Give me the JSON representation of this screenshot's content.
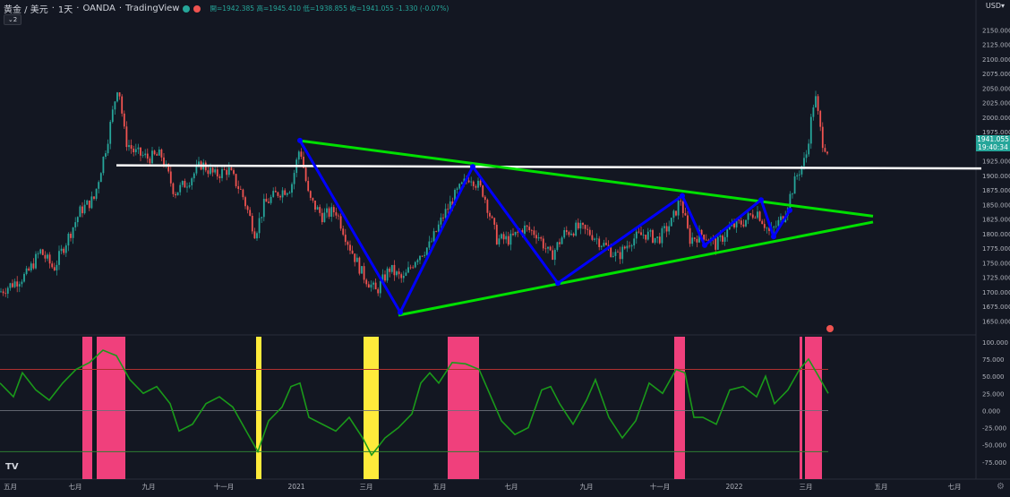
{
  "header": {
    "symbol": "黄金 / 美元",
    "interval": "1天",
    "broker": "OANDA",
    "platform": "TradingView",
    "ohlc": "開=1942.385 高=1945.410 低=1938.855 收=1941.055 -1.330 (-0.07%)",
    "indicator_count": "2"
  },
  "currency": "USD",
  "last_price": "1941.055",
  "countdown": "19:40:34",
  "colors": {
    "up": "#26a69a",
    "down": "#ef5350",
    "pattern": "#0000ff",
    "trend": "#00e000",
    "level": "#ffffff",
    "band_pink": "#f0407c",
    "band_yellow": "#ffeb3b",
    "osc": "#1a9a1a"
  },
  "chart_data": [
    {
      "type": "candlestick",
      "title": "",
      "y_axis_ticks": [
        "2150.000",
        "2125.000",
        "2100.000",
        "2075.000",
        "2050.000",
        "2025.000",
        "2000.000",
        "1975.000",
        "1950.000",
        "1925.000",
        "1900.000",
        "1875.000",
        "1850.000",
        "1825.000",
        "1800.000",
        "1775.000",
        "1750.000",
        "1725.000",
        "1700.000",
        "1675.000",
        "1650.000"
      ],
      "ylim": [
        1640,
        2155
      ],
      "x_axis_ticks": [
        "五月",
        "七月",
        "九月",
        "十一月",
        "2021",
        "三月",
        "五月",
        "七月",
        "九月",
        "十一月",
        "2022",
        "三月",
        "五月",
        "七月"
      ],
      "close_path": [
        [
          0,
          1700
        ],
        [
          30,
          1730
        ],
        [
          45,
          1770
        ],
        [
          60,
          1740
        ],
        [
          75,
          1790
        ],
        [
          90,
          1840
        ],
        [
          105,
          1860
        ],
        [
          120,
          1960
        ],
        [
          132,
          2060
        ],
        [
          140,
          1960
        ],
        [
          150,
          1940
        ],
        [
          165,
          1930
        ],
        [
          180,
          1935
        ],
        [
          195,
          1870
        ],
        [
          210,
          1890
        ],
        [
          225,
          1920
        ],
        [
          240,
          1900
        ],
        [
          255,
          1910
        ],
        [
          270,
          1870
        ],
        [
          285,
          1800
        ],
        [
          295,
          1850
        ],
        [
          310,
          1870
        ],
        [
          325,
          1880
        ],
        [
          335,
          1950
        ],
        [
          345,
          1860
        ],
        [
          360,
          1830
        ],
        [
          375,
          1840
        ],
        [
          390,
          1780
        ],
        [
          405,
          1730
        ],
        [
          420,
          1700
        ],
        [
          435,
          1740
        ],
        [
          450,
          1720
        ],
        [
          465,
          1760
        ],
        [
          480,
          1780
        ],
        [
          495,
          1830
        ],
        [
          510,
          1870
        ],
        [
          525,
          1900
        ],
        [
          540,
          1870
        ],
        [
          555,
          1790
        ],
        [
          570,
          1790
        ],
        [
          585,
          1810
        ],
        [
          600,
          1800
        ],
        [
          615,
          1760
        ],
        [
          630,
          1800
        ],
        [
          645,
          1810
        ],
        [
          660,
          1800
        ],
        [
          675,
          1780
        ],
        [
          690,
          1760
        ],
        [
          705,
          1790
        ],
        [
          720,
          1800
        ],
        [
          735,
          1790
        ],
        [
          750,
          1820
        ],
        [
          760,
          1860
        ],
        [
          770,
          1790
        ],
        [
          785,
          1800
        ],
        [
          800,
          1780
        ],
        [
          815,
          1810
        ],
        [
          830,
          1820
        ],
        [
          845,
          1840
        ],
        [
          860,
          1800
        ],
        [
          875,
          1830
        ],
        [
          890,
          1900
        ],
        [
          900,
          1930
        ],
        [
          910,
          2040
        ],
        [
          918,
          1960
        ],
        [
          925,
          1941
        ]
      ],
      "pattern_points": [
        [
          1960,
          335
        ],
        [
          1665,
          447
        ],
        [
          1915,
          528
        ],
        [
          1715,
          623
        ],
        [
          1865,
          762
        ],
        [
          1780,
          787
        ],
        [
          1858,
          850
        ],
        [
          1795,
          864
        ],
        [
          1840,
          882
        ]
      ],
      "resistance": {
        "level": 1915
      },
      "trendlines": [
        {
          "from": [
            "2021-01",
            1960
          ],
          "to": [
            "2022-04",
            1830
          ]
        },
        {
          "from": [
            "2021-03",
            1660
          ],
          "to": [
            "2022-04",
            1820
          ]
        }
      ]
    },
    {
      "type": "line",
      "y_axis_ticks": [
        "100.000",
        "75.000",
        "50.000",
        "25.000",
        "0.000",
        "-25.000",
        "-50.000",
        "-75.000"
      ],
      "ylim": [
        -100,
        105
      ],
      "levels": [
        60,
        0,
        -60
      ],
      "bands": [
        {
          "color": "pink",
          "from": 92,
          "to": 103
        },
        {
          "color": "pink",
          "from": 108,
          "to": 140
        },
        {
          "color": "yellow",
          "from": 286,
          "to": 292
        },
        {
          "color": "yellow",
          "from": 406,
          "to": 423
        },
        {
          "color": "pink",
          "from": 500,
          "to": 535
        },
        {
          "color": "pink",
          "from": 753,
          "to": 765
        },
        {
          "color": "pink",
          "from": 893,
          "to": 896
        },
        {
          "color": "pink",
          "from": 899,
          "to": 918
        }
      ],
      "series": [
        {
          "values": [
            [
              0,
              40
            ],
            [
              15,
              20
            ],
            [
              25,
              55
            ],
            [
              40,
              30
            ],
            [
              55,
              15
            ],
            [
              70,
              40
            ],
            [
              85,
              60
            ],
            [
              100,
              70
            ],
            [
              115,
              88
            ],
            [
              130,
              80
            ],
            [
              145,
              45
            ],
            [
              160,
              25
            ],
            [
              175,
              35
            ],
            [
              190,
              10
            ],
            [
              200,
              -30
            ],
            [
              215,
              -20
            ],
            [
              230,
              10
            ],
            [
              245,
              20
            ],
            [
              260,
              5
            ],
            [
              275,
              -30
            ],
            [
              288,
              -60
            ],
            [
              300,
              -15
            ],
            [
              315,
              5
            ],
            [
              325,
              35
            ],
            [
              335,
              40
            ],
            [
              345,
              -10
            ],
            [
              360,
              -20
            ],
            [
              375,
              -30
            ],
            [
              390,
              -10
            ],
            [
              405,
              -40
            ],
            [
              415,
              -65
            ],
            [
              430,
              -40
            ],
            [
              445,
              -25
            ],
            [
              460,
              -5
            ],
            [
              470,
              40
            ],
            [
              480,
              55
            ],
            [
              490,
              40
            ],
            [
              505,
              70
            ],
            [
              520,
              68
            ],
            [
              535,
              60
            ],
            [
              545,
              30
            ],
            [
              560,
              -15
            ],
            [
              575,
              -35
            ],
            [
              590,
              -25
            ],
            [
              605,
              30
            ],
            [
              615,
              35
            ],
            [
              625,
              10
            ],
            [
              640,
              -20
            ],
            [
              655,
              15
            ],
            [
              665,
              45
            ],
            [
              680,
              -10
            ],
            [
              695,
              -40
            ],
            [
              710,
              -15
            ],
            [
              725,
              40
            ],
            [
              740,
              25
            ],
            [
              755,
              60
            ],
            [
              765,
              55
            ],
            [
              775,
              -10
            ],
            [
              785,
              -10
            ],
            [
              800,
              -20
            ],
            [
              815,
              30
            ],
            [
              830,
              35
            ],
            [
              845,
              20
            ],
            [
              855,
              50
            ],
            [
              865,
              10
            ],
            [
              880,
              30
            ],
            [
              893,
              60
            ],
            [
              903,
              75
            ],
            [
              912,
              55
            ],
            [
              925,
              25
            ]
          ]
        }
      ]
    }
  ]
}
